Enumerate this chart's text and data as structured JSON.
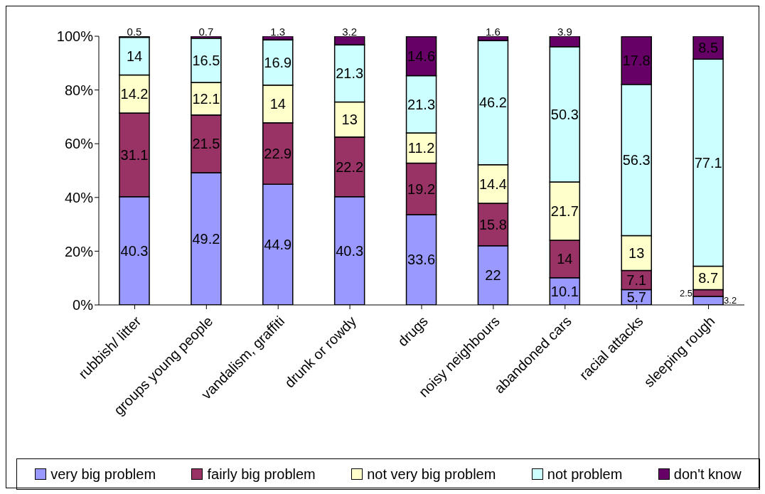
{
  "chart_data": {
    "type": "bar",
    "stacked": true,
    "categories": [
      "rubbish/ litter",
      "groups young people",
      "vandalism, graffiti",
      "drunk or rowdy",
      "drugs",
      "noisy neighbours",
      "abandoned cars",
      "racial attacks",
      "sleeping rough"
    ],
    "series": [
      {
        "name": "very big problem",
        "color": "#9999ff",
        "values": [
          40.3,
          49.2,
          44.9,
          40.3,
          33.6,
          22,
          10.1,
          5.7,
          3.2
        ]
      },
      {
        "name": "fairly big problem",
        "color": "#993366",
        "values": [
          31.1,
          21.5,
          22.9,
          22.2,
          19.2,
          15.8,
          14,
          7.1,
          2.5
        ]
      },
      {
        "name": "not very big problem",
        "color": "#ffffcc",
        "values": [
          14.2,
          12.1,
          14,
          13,
          11.2,
          14.4,
          21.7,
          13,
          8.7
        ]
      },
      {
        "name": "not problem",
        "color": "#ccffff",
        "values": [
          14,
          16.5,
          16.9,
          21.3,
          21.3,
          46.2,
          50.3,
          56.3,
          77.1
        ]
      },
      {
        "name": "don't know",
        "color": "#660066",
        "values": [
          0.5,
          0.7,
          1.3,
          3.2,
          14.6,
          1.6,
          3.9,
          17.8,
          8.5
        ]
      }
    ],
    "ylim": [
      0,
      100
    ],
    "yticks": [
      {
        "value": 0,
        "label": "0%"
      },
      {
        "value": 20,
        "label": "20%"
      },
      {
        "value": 40,
        "label": "40%"
      },
      {
        "value": 60,
        "label": "60%"
      },
      {
        "value": 80,
        "label": "80%"
      },
      {
        "value": 100,
        "label": "100%"
      }
    ],
    "data_labels": true,
    "legend": "bottom",
    "grid": false
  }
}
